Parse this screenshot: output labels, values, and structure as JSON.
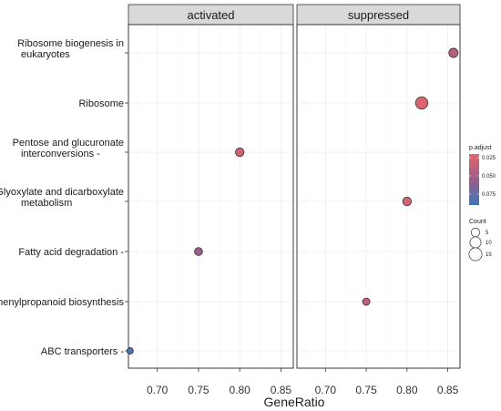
{
  "chart_data": {
    "type": "scatter",
    "facets": [
      "activated",
      "suppressed"
    ],
    "xlabel": "GeneRatio",
    "ylabel": "",
    "xlim": [
      0.665,
      0.865
    ],
    "xticks": [
      0.7,
      0.75,
      0.8,
      0.85
    ],
    "xtick_labels": [
      "0.70",
      "0.75",
      "0.80",
      "0.85"
    ],
    "categories": [
      [
        "Ribosome biogenesis in",
        "eukaryotes"
      ],
      [
        "Ribosome"
      ],
      [
        "Pentose and glucuronate",
        "interconversions -"
      ],
      [
        "Glyoxylate and dicarboxylate",
        "metabolism"
      ],
      [
        "Fatty acid degradation -"
      ],
      [
        "Phenylpropanoid biosynthesis"
      ],
      [
        "ABC transporters -"
      ]
    ],
    "points": [
      {
        "facet": "suppressed",
        "category": 0,
        "gene_ratio": 0.857,
        "p_adjust": 0.042,
        "count": 6
      },
      {
        "facet": "suppressed",
        "category": 1,
        "gene_ratio": 0.818,
        "p_adjust": 0.025,
        "count": 13
      },
      {
        "facet": "activated",
        "category": 2,
        "gene_ratio": 0.8,
        "p_adjust": 0.032,
        "count": 5
      },
      {
        "facet": "suppressed",
        "category": 3,
        "gene_ratio": 0.8,
        "p_adjust": 0.028,
        "count": 5
      },
      {
        "facet": "activated",
        "category": 4,
        "gene_ratio": 0.75,
        "p_adjust": 0.055,
        "count": 4
      },
      {
        "facet": "suppressed",
        "category": 5,
        "gene_ratio": 0.75,
        "p_adjust": 0.035,
        "count": 3
      },
      {
        "facet": "activated",
        "category": 6,
        "gene_ratio": 0.667,
        "p_adjust": 0.085,
        "count": 2
      }
    ],
    "grid": true,
    "legend": {
      "placement": "right",
      "color": {
        "title": "p.adjust",
        "ticks": [
          0.025,
          0.05,
          0.075
        ],
        "tick_labels": [
          "0.025",
          "0.050",
          "0.075"
        ],
        "range": [
          0.02,
          0.09
        ],
        "low_color": "#e8636b",
        "mid_color": "#9b5d8a",
        "high_color": "#3a78b8"
      },
      "size": {
        "title": "Count",
        "values": [
          5,
          10,
          15
        ],
        "value_labels": [
          "5",
          "10",
          "15"
        ]
      }
    }
  }
}
